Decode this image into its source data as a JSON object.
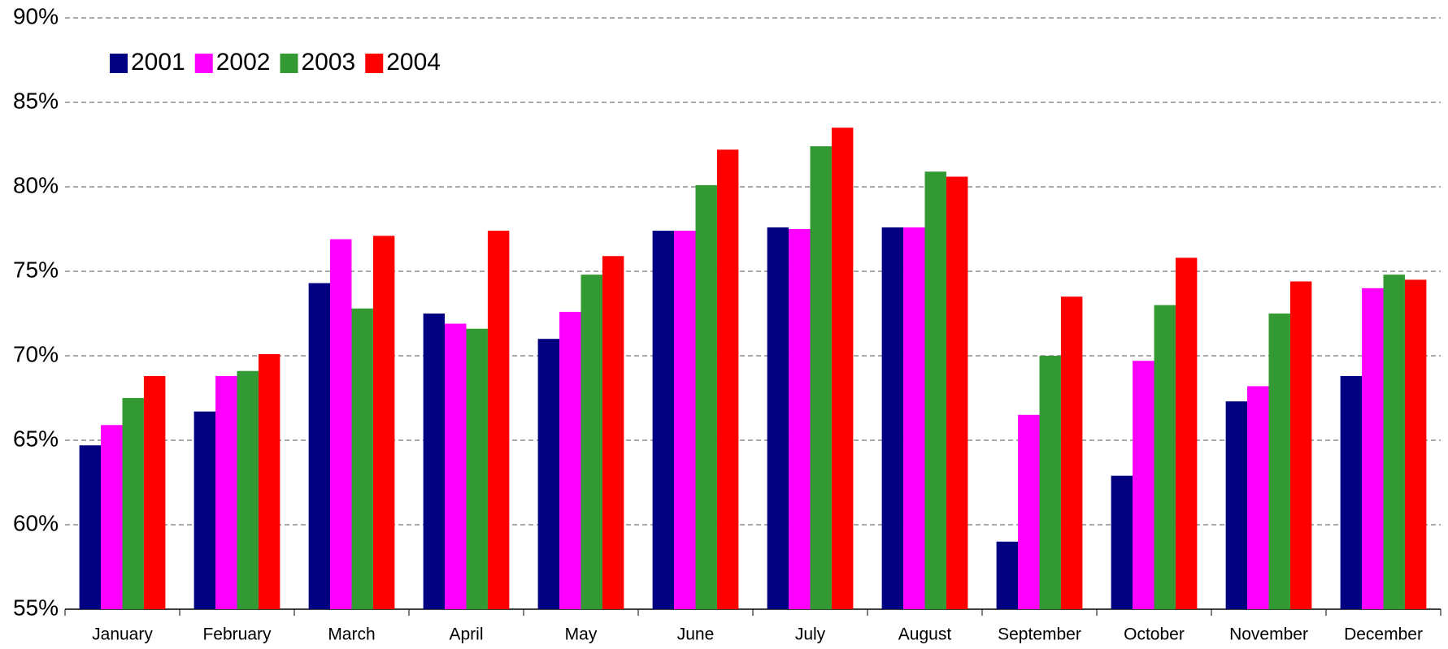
{
  "chart_data": {
    "type": "bar",
    "categories": [
      "January",
      "February",
      "March",
      "April",
      "May",
      "June",
      "July",
      "August",
      "September",
      "October",
      "November",
      "December"
    ],
    "series": [
      {
        "name": "2001",
        "color": "#000080",
        "values": [
          64.7,
          66.7,
          74.3,
          72.5,
          71.0,
          77.4,
          77.6,
          77.6,
          59.0,
          62.9,
          67.3,
          68.8
        ]
      },
      {
        "name": "2002",
        "color": "#ff00ff",
        "values": [
          65.9,
          68.8,
          76.9,
          71.9,
          72.6,
          77.4,
          77.5,
          77.6,
          66.5,
          69.7,
          68.2,
          74.0
        ]
      },
      {
        "name": "2003",
        "color": "#339933",
        "values": [
          67.5,
          69.1,
          72.8,
          71.6,
          74.8,
          80.1,
          82.4,
          80.9,
          70.0,
          73.0,
          72.5,
          74.8
        ]
      },
      {
        "name": "2004",
        "color": "#ff0000",
        "values": [
          68.8,
          70.1,
          77.1,
          77.4,
          75.9,
          82.2,
          83.5,
          80.6,
          73.5,
          75.8,
          74.4,
          74.5
        ]
      }
    ],
    "ylim": [
      55,
      90
    ],
    "yticks": [
      {
        "value": 55,
        "label": "55%"
      },
      {
        "value": 60,
        "label": "60%"
      },
      {
        "value": 65,
        "label": "65%"
      },
      {
        "value": 70,
        "label": "70%"
      },
      {
        "value": 75,
        "label": "75%"
      },
      {
        "value": 80,
        "label": "80%"
      },
      {
        "value": 85,
        "label": "85%"
      },
      {
        "value": 90,
        "label": "90%"
      }
    ],
    "grid": true,
    "legend": "top-left"
  }
}
